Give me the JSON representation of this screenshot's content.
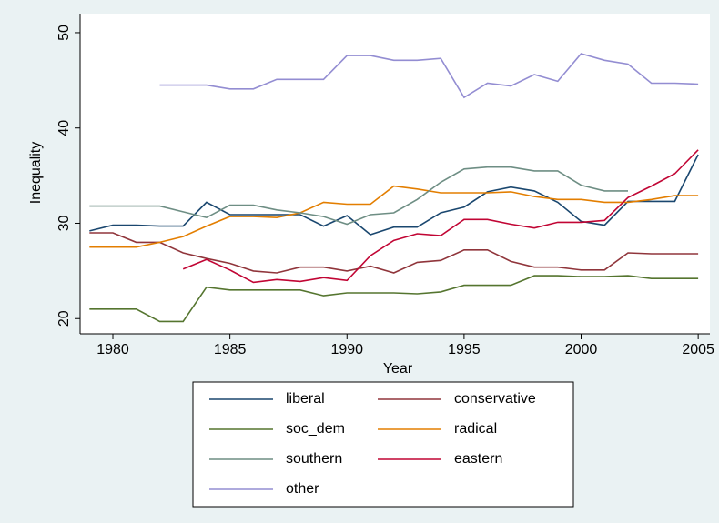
{
  "chart_data": {
    "type": "line",
    "x_label": "Year",
    "y_label": "Inequality",
    "x": [
      1979,
      1980,
      1981,
      1982,
      1983,
      1984,
      1985,
      1986,
      1987,
      1988,
      1989,
      1990,
      1991,
      1992,
      1993,
      1994,
      1995,
      1996,
      1997,
      1998,
      1999,
      2000,
      2001,
      2002,
      2003,
      2004,
      2005
    ],
    "xlim": [
      1978.6,
      2005.5
    ],
    "xticks": [
      1980,
      1985,
      1990,
      1995,
      2000,
      2005
    ],
    "ylim": [
      18.4,
      52
    ],
    "yticks": [
      20,
      30,
      40,
      50
    ],
    "grid": false,
    "legend": "bottom",
    "series": [
      {
        "name": "liberal",
        "color": "#1a476f",
        "values": [
          29.2,
          29.8,
          29.8,
          29.7,
          29.7,
          32.2,
          30.9,
          30.9,
          30.9,
          30.9,
          29.7,
          30.8,
          28.8,
          29.6,
          29.6,
          31.1,
          31.7,
          33.3,
          33.8,
          33.4,
          32.2,
          30.2,
          29.8,
          32.3,
          32.3,
          32.3,
          37.2
        ]
      },
      {
        "name": "conservative",
        "color": "#90353b",
        "values": [
          29.0,
          29.0,
          28.0,
          28.0,
          26.9,
          26.3,
          25.8,
          25.0,
          24.8,
          25.4,
          25.4,
          25.0,
          25.5,
          24.8,
          25.9,
          26.1,
          27.2,
          27.2,
          26.0,
          25.4,
          25.4,
          25.1,
          25.1,
          26.9,
          26.8,
          26.8,
          26.8
        ]
      },
      {
        "name": "soc_dem",
        "color": "#55752f",
        "values": [
          21.0,
          21.0,
          21.0,
          19.7,
          19.7,
          23.3,
          23.0,
          23.0,
          23.0,
          23.0,
          22.4,
          22.7,
          22.7,
          22.7,
          22.6,
          22.8,
          23.5,
          23.5,
          23.5,
          24.5,
          24.5,
          24.4,
          24.4,
          24.5,
          24.2,
          24.2,
          24.2
        ]
      },
      {
        "name": "radical",
        "color": "#e37e00",
        "values": [
          27.5,
          27.5,
          27.5,
          28.0,
          28.6,
          29.7,
          30.7,
          30.7,
          30.6,
          31.1,
          32.2,
          32.0,
          32.0,
          33.9,
          33.6,
          33.2,
          33.2,
          33.2,
          33.3,
          32.8,
          32.5,
          32.5,
          32.2,
          32.2,
          32.5,
          32.9,
          32.9
        ]
      },
      {
        "name": "southern",
        "color": "#6e8e84",
        "values": [
          31.8,
          31.8,
          31.8,
          31.8,
          31.2,
          30.6,
          31.9,
          31.9,
          31.4,
          31.1,
          30.7,
          29.9,
          30.9,
          31.1,
          32.5,
          34.3,
          35.7,
          35.9,
          35.9,
          35.5,
          35.5,
          34.0,
          33.4,
          33.4,
          null,
          null,
          null
        ]
      },
      {
        "name": "eastern",
        "color": "#c10534",
        "values": [
          null,
          null,
          null,
          null,
          25.2,
          26.2,
          25.1,
          23.8,
          24.1,
          23.9,
          24.3,
          24.0,
          26.6,
          28.2,
          28.9,
          28.7,
          30.4,
          30.4,
          29.9,
          29.5,
          30.1,
          30.1,
          30.3,
          32.7,
          33.9,
          35.2,
          37.7
        ]
      },
      {
        "name": "other",
        "color": "#938dd2",
        "values": [
          null,
          null,
          null,
          44.5,
          44.5,
          44.5,
          44.1,
          44.1,
          45.1,
          45.1,
          45.1,
          47.6,
          47.6,
          47.1,
          47.1,
          47.3,
          43.2,
          44.7,
          44.4,
          45.6,
          44.9,
          47.8,
          47.1,
          46.7,
          44.7,
          44.7,
          44.6
        ]
      }
    ]
  }
}
